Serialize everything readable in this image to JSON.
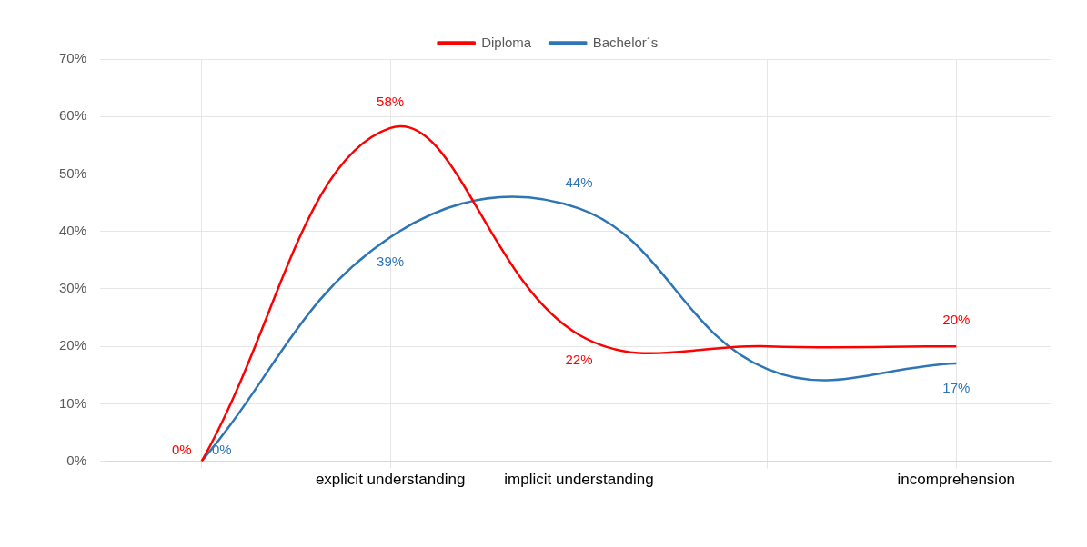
{
  "chart_data": {
    "type": "line",
    "categories": [
      null,
      "explicit understanding",
      "implicit understanding",
      null,
      "incomprehension"
    ],
    "series": [
      {
        "name": "Diploma",
        "color": "#ff0000",
        "values": [
          0,
          58,
          22,
          20,
          20
        ],
        "value_labels": [
          "0%",
          "58%",
          "22%",
          null,
          "20%"
        ]
      },
      {
        "name": "Bachelor´s",
        "color": "#2e75b6",
        "values": [
          0,
          39,
          44,
          16,
          17
        ],
        "value_labels": [
          "0%",
          "39%",
          "44%",
          null,
          "17%"
        ]
      }
    ],
    "ylim": [
      0,
      70
    ],
    "yticks": [
      {
        "value": 0,
        "label": "0%"
      },
      {
        "value": 10,
        "label": "10%"
      },
      {
        "value": 20,
        "label": "20%"
      },
      {
        "value": 30,
        "label": "30%"
      },
      {
        "value": 40,
        "label": "40%"
      },
      {
        "value": 50,
        "label": "50%"
      },
      {
        "value": 60,
        "label": "60%"
      },
      {
        "value": 70,
        "label": "70%"
      }
    ],
    "grid": true,
    "legend": "top",
    "marker": "none",
    "line_style": "solid"
  }
}
